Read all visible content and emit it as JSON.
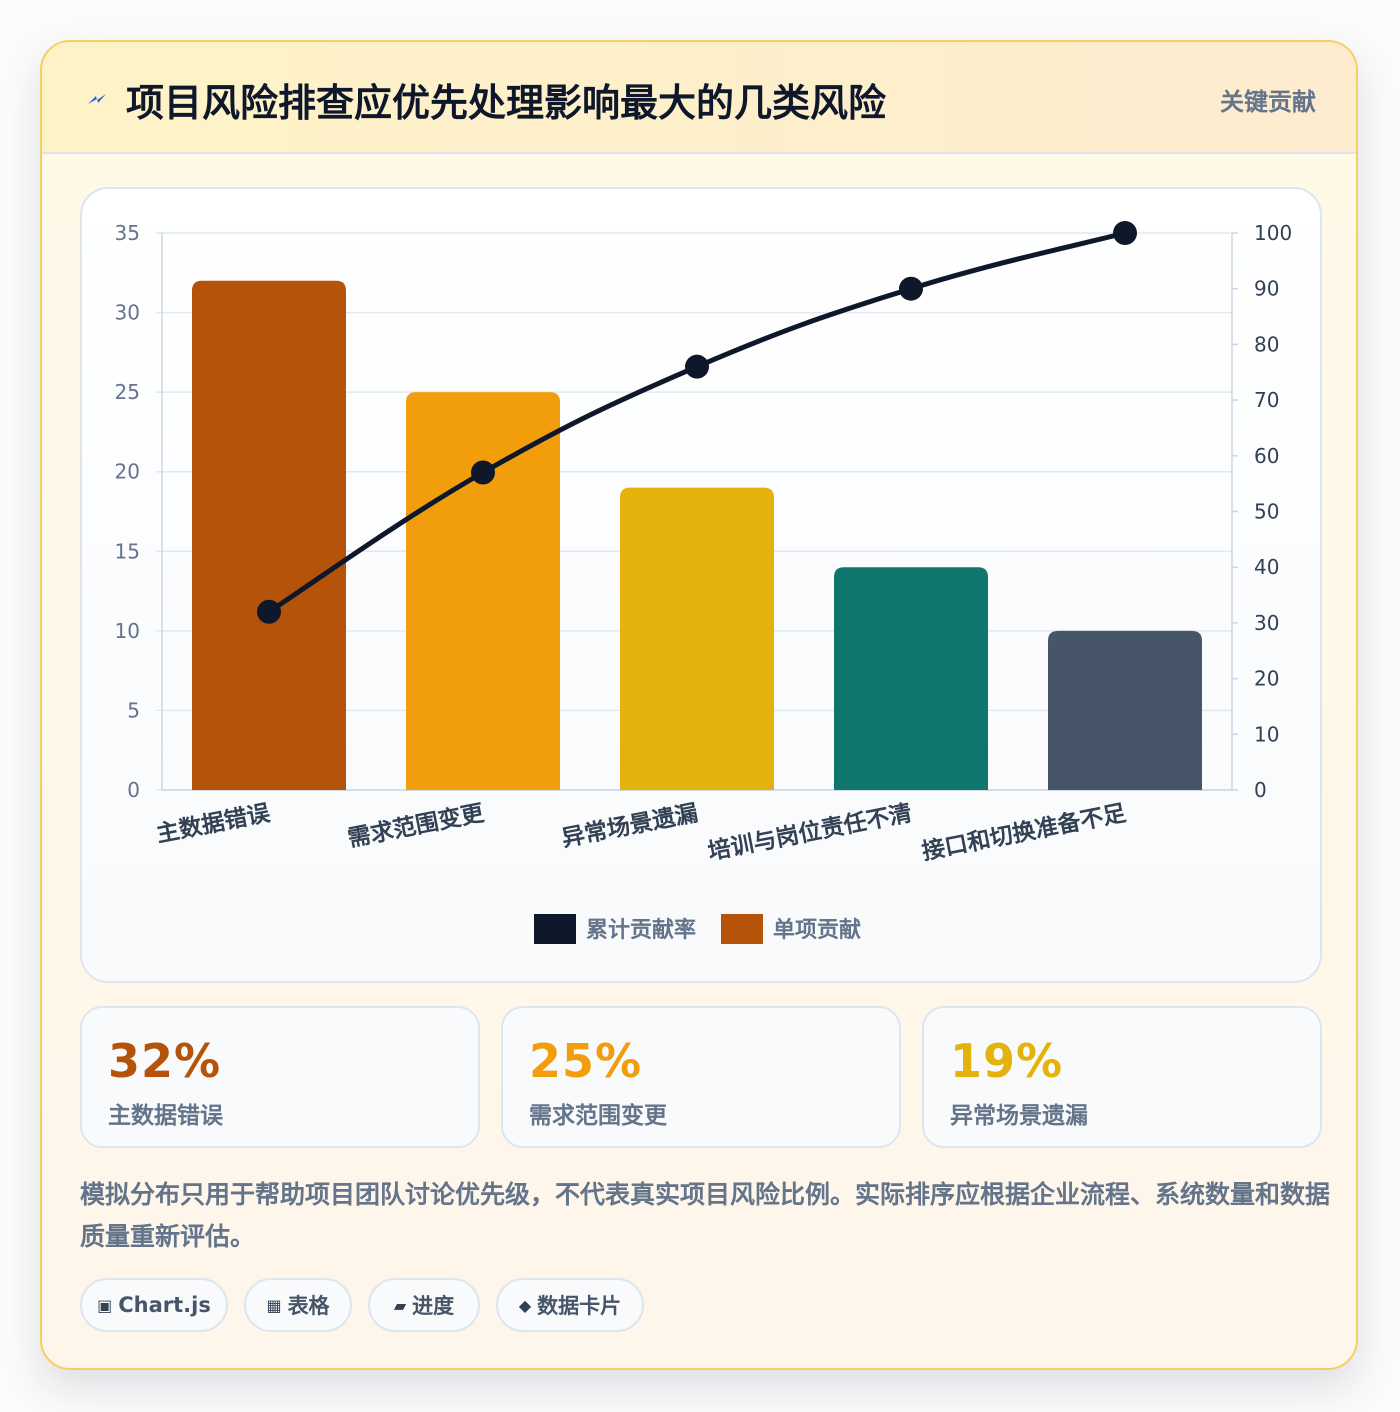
{
  "header": {
    "title": "项目风险排查应优先处理影响最大的几类风险",
    "badge": "关键贡献"
  },
  "chart_data": {
    "type": "bar",
    "categories": [
      "主数据错误",
      "需求范围变更",
      "异常场景遗漏",
      "培训与岗位责任不清",
      "接口和切换准备不足"
    ],
    "series": [
      {
        "name": "单项贡献",
        "type": "bar",
        "axis": "left",
        "values": [
          32,
          25,
          19,
          14,
          10
        ]
      },
      {
        "name": "累计贡献率",
        "type": "line",
        "axis": "right",
        "values": [
          32,
          57,
          76,
          90,
          100
        ]
      }
    ],
    "bar_colors": [
      "#b45309",
      "#f29e0c",
      "#e5b10b",
      "#0f766e",
      "#475569"
    ],
    "line_color": "#0f172a",
    "ylim_left": [
      0,
      35
    ],
    "yticks_left": [
      0,
      5,
      10,
      15,
      20,
      25,
      30,
      35
    ],
    "ylim_right": [
      0,
      100
    ],
    "yticks_right": [
      0,
      10,
      20,
      30,
      40,
      50,
      60,
      70,
      80,
      90,
      100
    ],
    "legend": [
      {
        "label": "累计贡献率",
        "color": "#0f172a"
      },
      {
        "label": "单项贡献",
        "color": "#b45309"
      }
    ],
    "legend_position": "bottom",
    "grid": true
  },
  "stats": [
    {
      "value": "32%",
      "label": "主数据错误",
      "color": "#b45309"
    },
    {
      "value": "25%",
      "label": "需求范围变更",
      "color": "#f29e0c"
    },
    {
      "value": "19%",
      "label": "异常场景遗漏",
      "color": "#e5b10b"
    }
  ],
  "note": "模拟分布只用于帮助项目团队讨论优先级，不代表真实项目风险比例。实际排序应根据企业流程、系统数量和数据质量重新评估。",
  "tags": [
    {
      "icon": "▣",
      "icon_name": "chart-square-icon",
      "label": "Chart.js"
    },
    {
      "icon": "▦",
      "icon_name": "table-grid-icon",
      "label": "表格"
    },
    {
      "icon": "▰",
      "icon_name": "progress-bar-icon",
      "label": "进度"
    },
    {
      "icon": "◆",
      "icon_name": "diamond-icon",
      "label": "数据卡片"
    }
  ]
}
